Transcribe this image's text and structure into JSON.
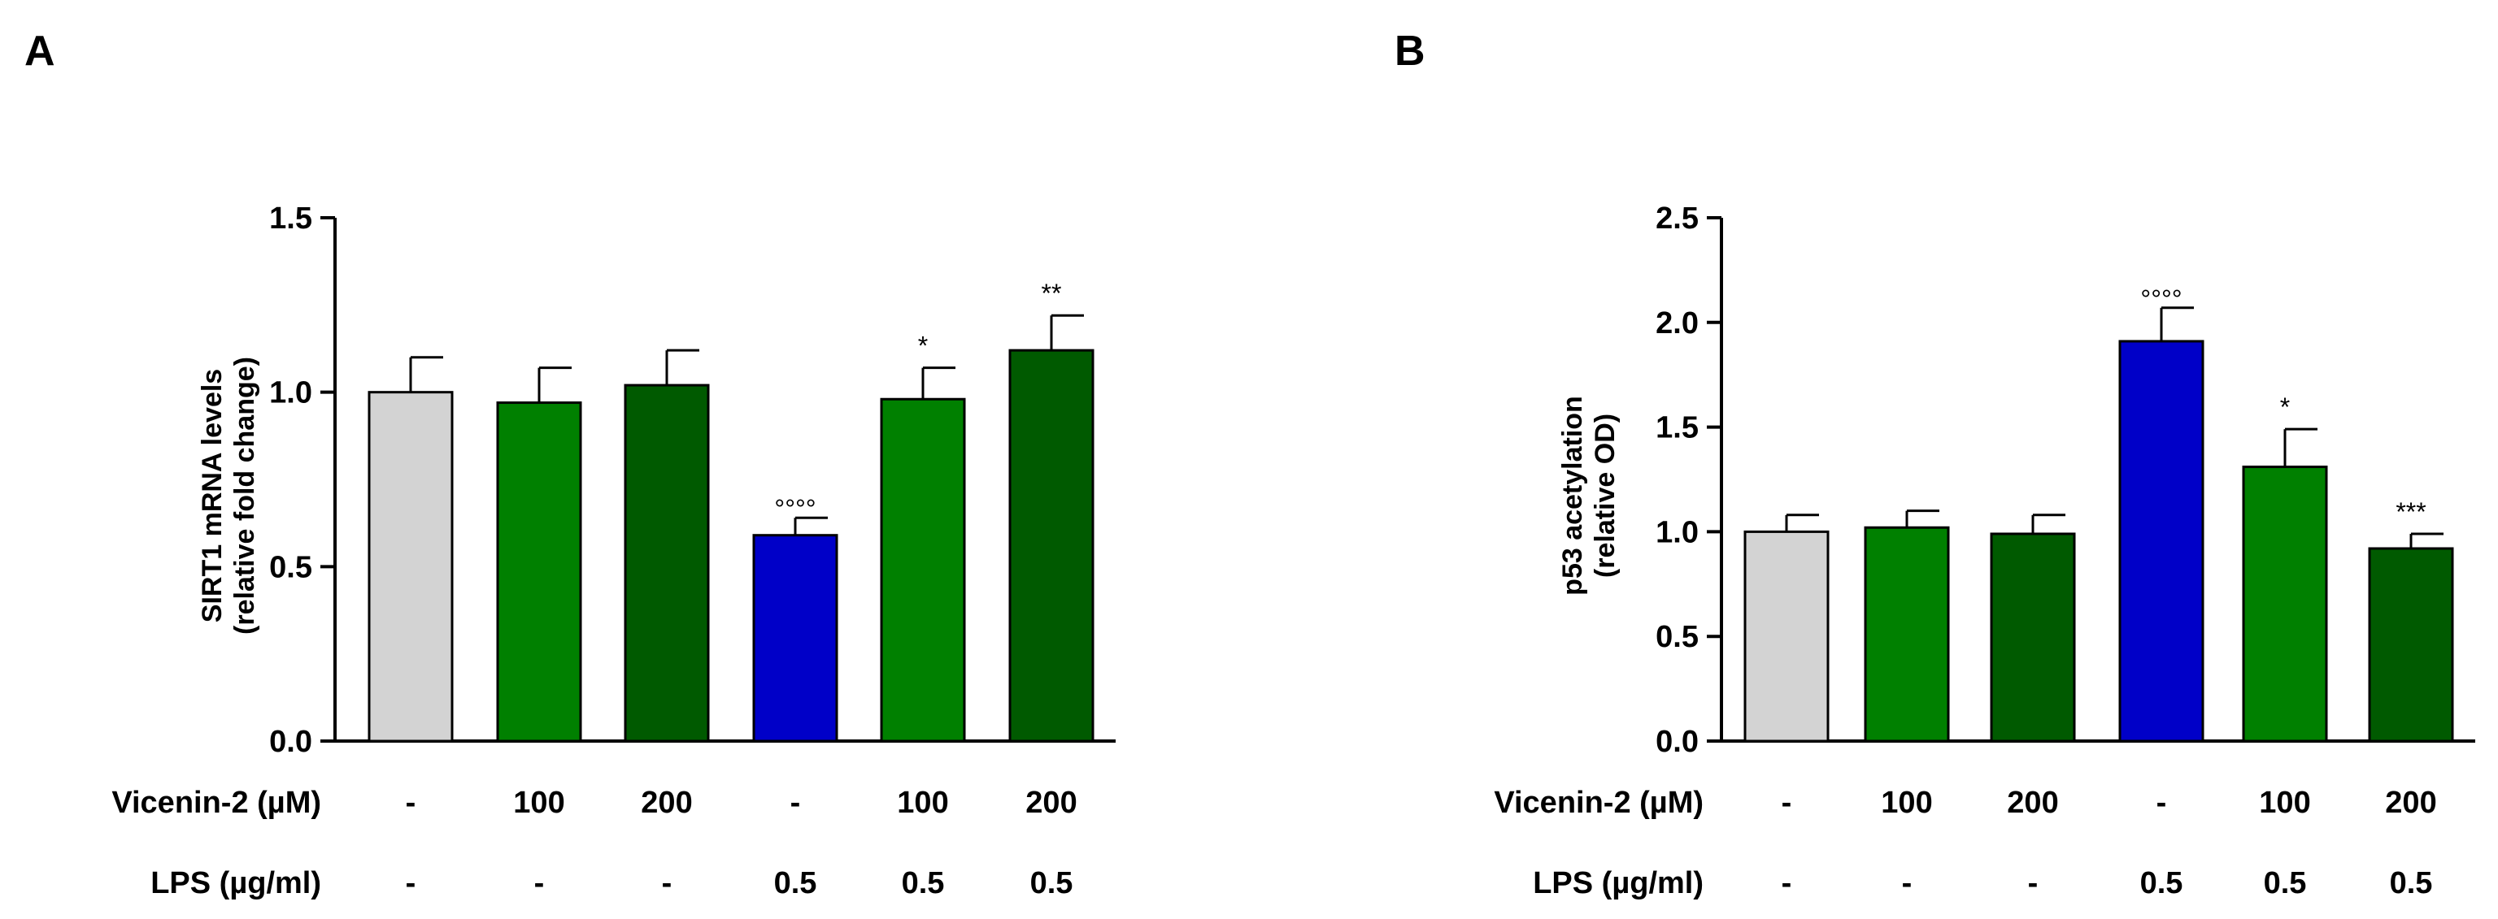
{
  "colors": {
    "control": "#d3d3d3",
    "green": "#008000",
    "dark_green": "#005a00",
    "blue": "#0000c8",
    "axis": "#000000"
  },
  "row_labels": {
    "vicenin": "Vicenin-2 (µM)",
    "lps": "LPS (µg/ml)"
  },
  "chart_data": [
    {
      "panel": "A",
      "type": "bar",
      "ylabel_lines": [
        "SIRT1 mRNA levels",
        "(relative fold change)"
      ],
      "ylim": [
        0,
        1.5
      ],
      "yticks": [
        0,
        0.5,
        1.0,
        1.5
      ],
      "ytick_labels": [
        "0.0",
        "0.5",
        "1.0",
        "1.5"
      ],
      "values": [
        1.0,
        0.97,
        1.02,
        0.59,
        0.98,
        1.12
      ],
      "errors": [
        0.1,
        0.1,
        0.1,
        0.05,
        0.09,
        0.1
      ],
      "bar_colors": [
        "#d3d3d3",
        "#008000",
        "#005a00",
        "#0000c8",
        "#008000",
        "#005a00"
      ],
      "annotations": [
        "",
        "",
        "",
        "°°°°",
        "*",
        "**"
      ],
      "vicenin": [
        "-",
        "100",
        "200",
        "-",
        "100",
        "200"
      ],
      "lps": [
        "-",
        "-",
        "-",
        "0.5",
        "0.5",
        "0.5"
      ]
    },
    {
      "panel": "B",
      "type": "bar",
      "ylabel_lines": [
        "p53 acetylation",
        "(relative OD)"
      ],
      "ylim": [
        0,
        2.5
      ],
      "yticks": [
        0,
        0.5,
        1.0,
        1.5,
        2.0,
        2.5
      ],
      "ytick_labels": [
        "0.0",
        "0.5",
        "1.0",
        "1.5",
        "2.0",
        "2.5"
      ],
      "values": [
        1.0,
        1.02,
        0.99,
        1.91,
        1.31,
        0.92
      ],
      "errors": [
        0.08,
        0.08,
        0.09,
        0.16,
        0.18,
        0.07
      ],
      "bar_colors": [
        "#d3d3d3",
        "#008000",
        "#005a00",
        "#0000c8",
        "#008000",
        "#005a00"
      ],
      "annotations": [
        "",
        "",
        "",
        "°°°°",
        "*",
        "***"
      ],
      "vicenin": [
        "-",
        "100",
        "200",
        "-",
        "100",
        "200"
      ],
      "lps": [
        "-",
        "-",
        "-",
        "0.5",
        "0.5",
        "0.5"
      ]
    }
  ]
}
